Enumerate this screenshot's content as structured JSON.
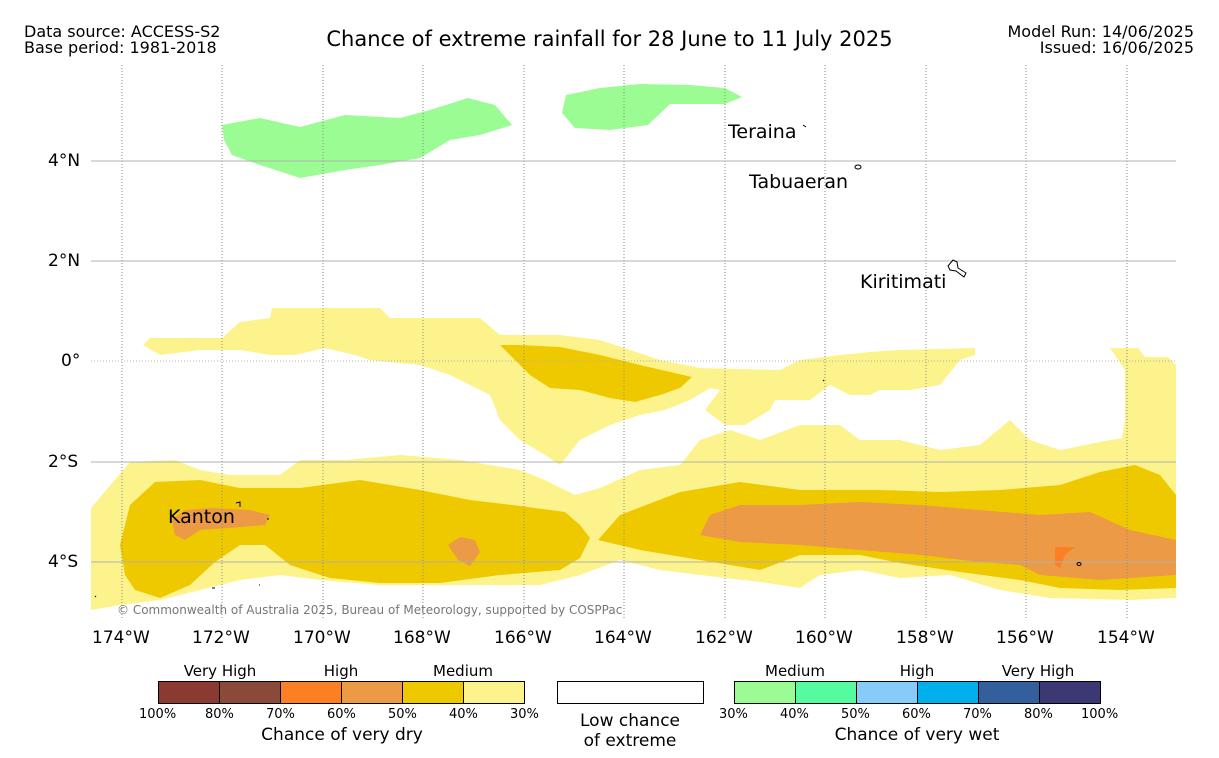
{
  "header": {
    "left_line1": "Data source: ACCESS-S2",
    "left_line2": "Base period: 1981-2018",
    "title": "Chance of extreme rainfall for 28 June to 11 July 2025",
    "right_line1": "Model Run: 14/06/2025",
    "right_line2": "Issued: 16/06/2025"
  },
  "map": {
    "lat_ticks": [
      "4°N",
      "2°N",
      "0°",
      "2°S",
      "4°S"
    ],
    "lon_ticks": [
      "174°W",
      "172°W",
      "170°W",
      "168°W",
      "166°W",
      "164°W",
      "162°W",
      "160°W",
      "158°W",
      "156°W",
      "154°W"
    ],
    "places": [
      "Teraina",
      "Tabuaeran",
      "Kiritimati",
      "Kanton"
    ],
    "copyright": "© Commonwealth of Australia 2025, Bureau of Meteorology, supported by COSPPac"
  },
  "legend": {
    "dry": {
      "groups": [
        "Very High",
        "High",
        "Medium"
      ],
      "colors": [
        "#8b3a32",
        "#8a4a3a",
        "#fd7f24",
        "#ec9a45",
        "#eec900",
        "#fdf38c"
      ],
      "percents": [
        "100%",
        "80%",
        "70%",
        "60%",
        "50%",
        "40%",
        "30%"
      ],
      "title": "Chance of very dry"
    },
    "low": {
      "line1": "Low chance",
      "line2": "of extreme",
      "color": "#ffffff"
    },
    "wet": {
      "groups": [
        "Medium",
        "High",
        "Very High"
      ],
      "colors": [
        "#9cfc94",
        "#55fc9f",
        "#87cbf9",
        "#00b0ec",
        "#345f9d",
        "#3c3874"
      ],
      "percents": [
        "30%",
        "40%",
        "50%",
        "60%",
        "70%",
        "80%",
        "100%"
      ],
      "title": "Chance of very wet"
    }
  }
}
